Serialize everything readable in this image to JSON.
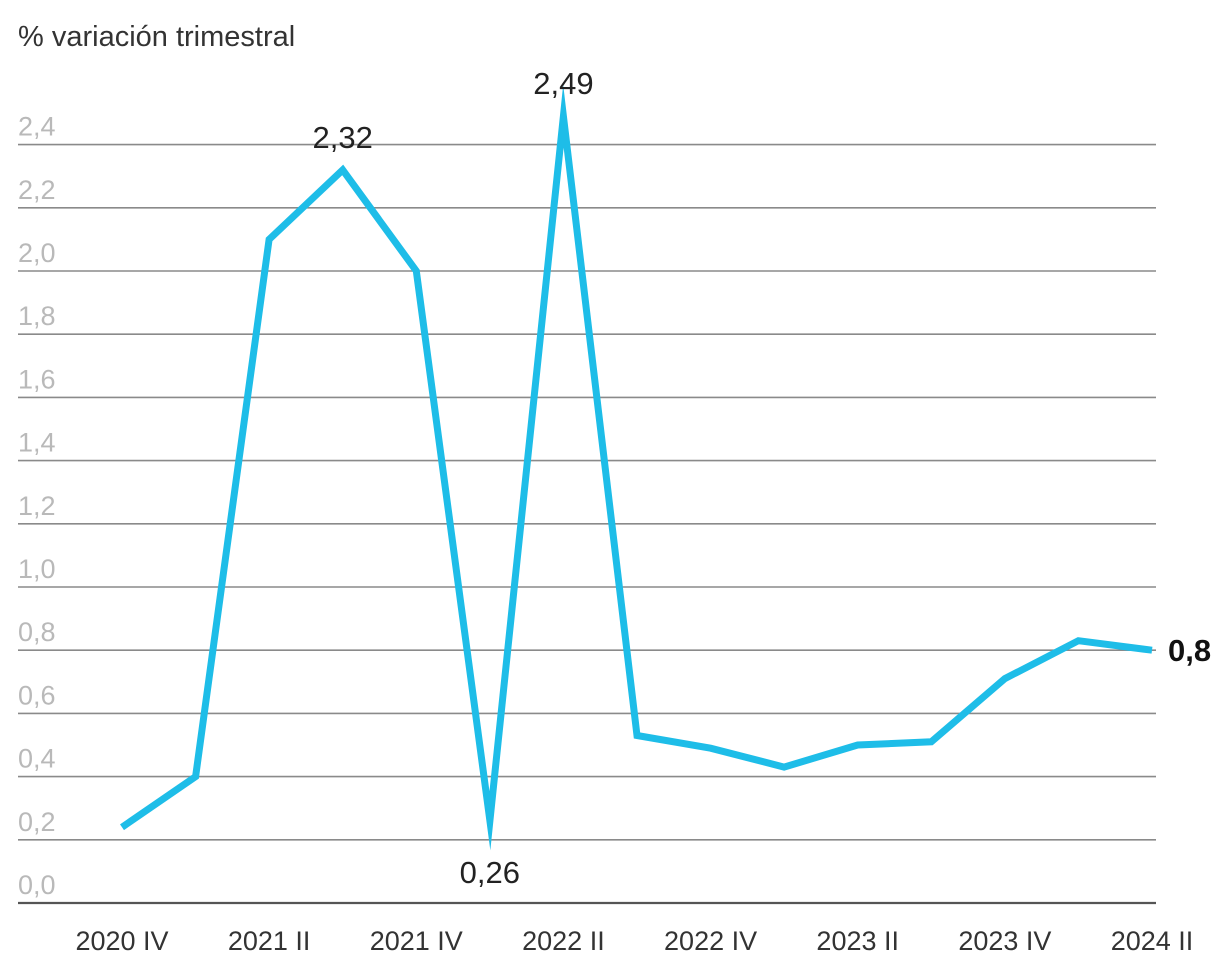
{
  "chart_data": {
    "type": "line",
    "ylabel": "% variación trimestral",
    "ylim": [
      0,
      2.5
    ],
    "yticks": [
      "0,0",
      "0,2",
      "0,4",
      "0,6",
      "0,8",
      "1,0",
      "1,2",
      "1,4",
      "1,6",
      "1,8",
      "2,0",
      "2,2",
      "2,4"
    ],
    "ytick_values": [
      0,
      0.2,
      0.4,
      0.6,
      0.8,
      1.0,
      1.2,
      1.4,
      1.6,
      1.8,
      2.0,
      2.2,
      2.4
    ],
    "x": [
      "2020 IV",
      "2021 I",
      "2021 II",
      "2021 III",
      "2021 IV",
      "2022 I",
      "2022 II",
      "2022 III",
      "2022 IV",
      "2023 I",
      "2023 II",
      "2023 III",
      "2023 IV",
      "2024 I",
      "2024 II"
    ],
    "xtick_labels": [
      "2020 IV",
      "2021 II",
      "2021 IV",
      "2022 II",
      "2022 IV",
      "2023 II",
      "2023 IV",
      "2024 II"
    ],
    "xtick_indices": [
      0,
      2,
      4,
      6,
      8,
      10,
      12,
      14
    ],
    "series": [
      {
        "values": [
          0.24,
          0.4,
          2.1,
          2.32,
          2.0,
          0.26,
          2.49,
          0.53,
          0.49,
          0.43,
          0.5,
          0.51,
          0.71,
          0.83,
          0.8
        ],
        "color": "#1ebde8"
      }
    ],
    "annotations": [
      {
        "index": 3,
        "text": "2,32",
        "placement": "above"
      },
      {
        "index": 6,
        "text": "2,49",
        "placement": "above"
      },
      {
        "index": 5,
        "text": "0,26",
        "placement": "below"
      },
      {
        "index": 14,
        "text": "0,8",
        "placement": "right",
        "bold": true
      }
    ],
    "grid": true,
    "legend": "none"
  }
}
